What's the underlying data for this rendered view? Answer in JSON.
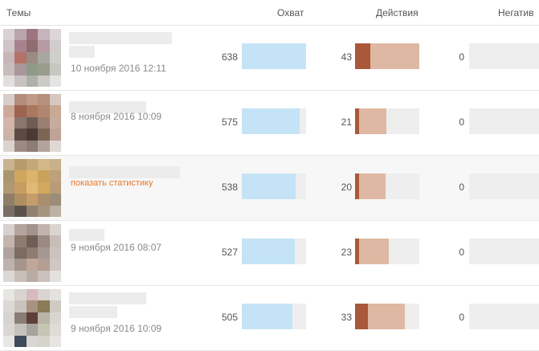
{
  "header": {
    "topics_label": "Темы",
    "reach_label": "Охват",
    "actions_label": "Действия",
    "negative_label": "Негатив"
  },
  "colors": {
    "reach_bar": "#c5e3f6",
    "actions_bar": "#deb8a2",
    "actions_bar_dark": "#a9583a",
    "track": "#eeeeee",
    "link": "#e8782b"
  },
  "rows": [
    {
      "date": "10 ноября 2016 12:11",
      "reach": "638",
      "reach_fraction": 1.0,
      "actions": "43",
      "actions_fraction": 1.0,
      "actions_dark_fraction": 0.24,
      "negative": "0",
      "link": ""
    },
    {
      "date": "8 ноября 2016 10:09",
      "reach": "575",
      "reach_fraction": 0.9,
      "actions": "21",
      "actions_fraction": 0.49,
      "actions_dark_fraction": 0.06,
      "negative": "0",
      "link": ""
    },
    {
      "date": "",
      "reach": "538",
      "reach_fraction": 0.84,
      "actions": "20",
      "actions_fraction": 0.47,
      "actions_dark_fraction": 0.06,
      "negative": "0",
      "link": "показать статистику"
    },
    {
      "date": "9 ноября 2016 08:07",
      "reach": "527",
      "reach_fraction": 0.83,
      "actions": "23",
      "actions_fraction": 0.53,
      "actions_dark_fraction": 0.06,
      "negative": "0",
      "link": ""
    },
    {
      "date": "9 ноября 2016 10:09",
      "reach": "505",
      "reach_fraction": 0.79,
      "actions": "33",
      "actions_fraction": 0.77,
      "actions_dark_fraction": 0.2,
      "negative": "0",
      "link": ""
    }
  ]
}
